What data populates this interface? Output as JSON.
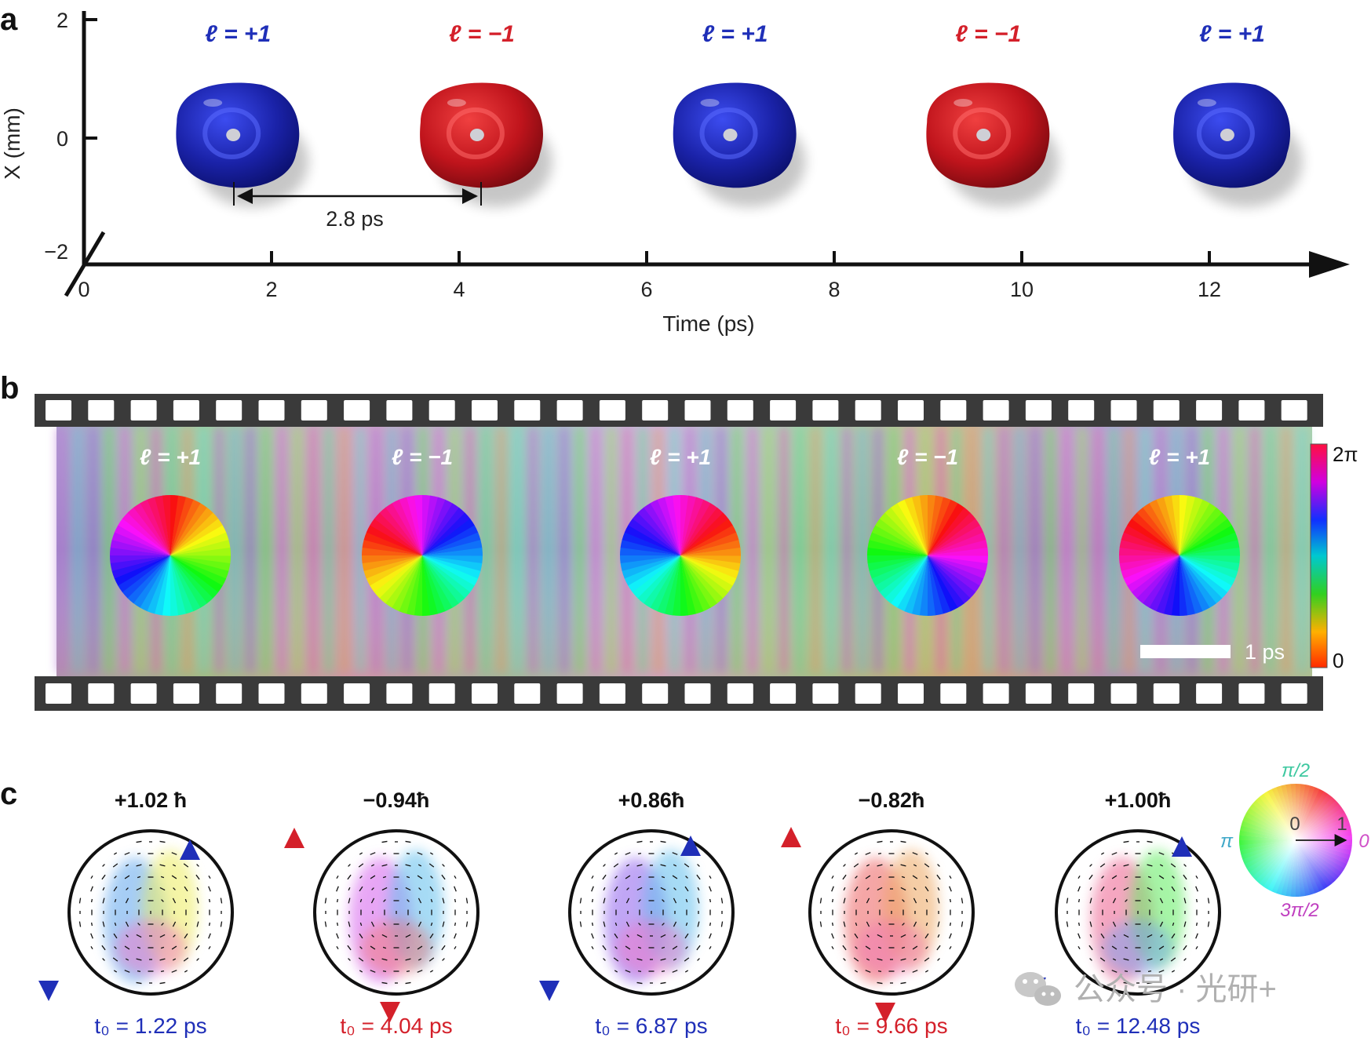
{
  "panel_letters": {
    "a": "a",
    "b": "b",
    "c": "c"
  },
  "panel_a": {
    "y_axis_label": "X (mm)",
    "y_ticks": [
      "2",
      "0",
      "−2"
    ],
    "x_axis_label": "Time (ps)",
    "x_ticks": [
      "0",
      "2",
      "4",
      "6",
      "8",
      "10",
      "12"
    ],
    "interval_label": "2.8 ps",
    "vortices": [
      {
        "label": "ℓ = +1",
        "time_ps": 1.6,
        "color": "#1f2fb8"
      },
      {
        "label": "ℓ = −1",
        "time_ps": 4.2,
        "color": "#d4202a"
      },
      {
        "label": "ℓ = +1",
        "time_ps": 6.9,
        "color": "#1f2fb8"
      },
      {
        "label": "ℓ = −1",
        "time_ps": 9.6,
        "color": "#d4202a"
      },
      {
        "label": "ℓ = +1",
        "time_ps": 12.2,
        "color": "#1f2fb8"
      }
    ]
  },
  "panel_b": {
    "frame_labels": [
      "ℓ = +1",
      "ℓ = −1",
      "ℓ = +1",
      "ℓ = −1",
      "ℓ = +1"
    ],
    "scale_bar_label": "1 ps",
    "colorbar_top": "2π",
    "colorbar_bottom": "0"
  },
  "panel_c": {
    "items": [
      {
        "momentum": "+1.02 ħ",
        "time": "t₀ = 1.22 ps",
        "color": "#1f2fb8"
      },
      {
        "momentum": "−0.94ħ",
        "time": "t₀ = 4.04 ps",
        "color": "#d4202a"
      },
      {
        "momentum": "+0.86ħ",
        "time": "t₀ = 6.87 ps",
        "color": "#1f2fb8"
      },
      {
        "momentum": "−0.82ħ",
        "time": "t₀ = 9.66 ps",
        "color": "#d4202a"
      },
      {
        "momentum": "+1.00ħ",
        "time": "t₀ = 12.48 ps",
        "color": "#1f2fb8"
      }
    ],
    "color_wheel": {
      "top": "π/2",
      "left": "π",
      "right": "0",
      "bottom": "3π/2",
      "radial_start": "0",
      "radial_end": "1"
    }
  },
  "watermark": "公众号 · 光研+",
  "colors": {
    "blue": "#1f2fb8",
    "red": "#d4202a",
    "filmstrip": "#3a3a3a"
  }
}
